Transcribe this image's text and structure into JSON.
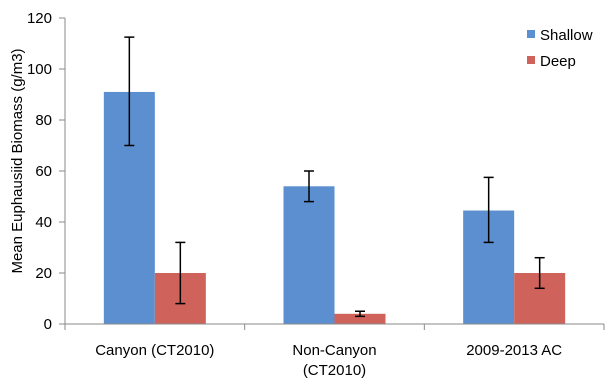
{
  "chart_data": {
    "type": "bar",
    "ylabel": "Mean Euphausiid Biomass (g/m3)",
    "ylim": [
      0,
      120
    ],
    "yticks": [
      0,
      20,
      40,
      60,
      80,
      100,
      120
    ],
    "categories": [
      [
        "Canyon (CT2010)"
      ],
      [
        "Non-Canyon",
        "(CT2010)"
      ],
      [
        "2009-2013 AC"
      ]
    ],
    "series": [
      {
        "name": "Shallow",
        "color": "#5b8fcf",
        "values": [
          91,
          54,
          44.5
        ],
        "error_low": [
          70,
          48,
          32
        ],
        "error_high": [
          112.5,
          60,
          57.5
        ]
      },
      {
        "name": "Deep",
        "color": "#d0625c",
        "values": [
          20,
          4,
          20
        ],
        "error_low": [
          8,
          3,
          14
        ],
        "error_high": [
          32,
          5,
          26
        ]
      }
    ],
    "legend_position": "top-right",
    "grid": false
  }
}
